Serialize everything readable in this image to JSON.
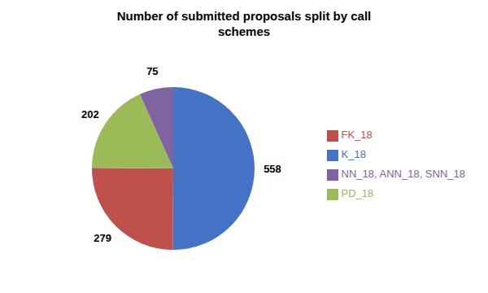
{
  "chart_data": {
    "type": "pie",
    "title": "Number of submitted proposals split by call\nschemes",
    "categories": [
      "K_18",
      "FK_18",
      "PD_18",
      "NN_18, ANN_18, SNN_18"
    ],
    "values": [
      558,
      279,
      202,
      75
    ],
    "colors": [
      "#4472C4",
      "#C0504D",
      "#9BBB59",
      "#8064A2"
    ],
    "data_labels": true,
    "legend": "right"
  }
}
